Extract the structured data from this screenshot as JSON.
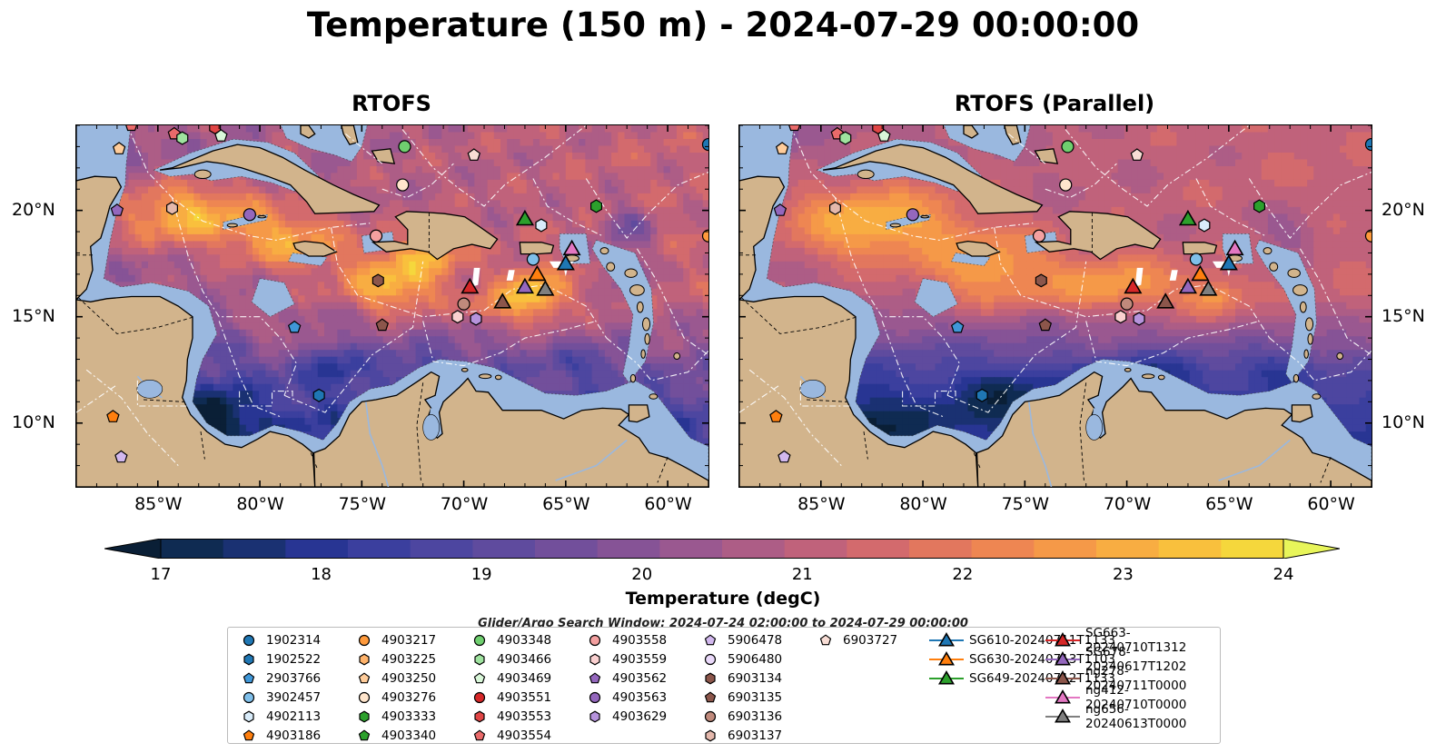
{
  "figure": {
    "title": "Temperature (150 m) - 2024-07-29 00:00:00",
    "search_window": "Glider/Argo Search Window: 2024-07-24 02:00:00 to 2024-07-29 00:00:00"
  },
  "chart_data": {
    "type": "heatmap",
    "variable": "Temperature (degC)",
    "depth": "150 m",
    "panels": [
      {
        "title": "RTOFS"
      },
      {
        "title": "RTOFS (Parallel)"
      }
    ],
    "xlim": [
      -89,
      -58
    ],
    "ylim": [
      7,
      24
    ],
    "xticks": [
      -85,
      -80,
      -75,
      -70,
      -65,
      -60
    ],
    "xticklabels": [
      "85°W",
      "80°W",
      "75°W",
      "70°W",
      "65°W",
      "60°W"
    ],
    "yticks": [
      10,
      15,
      20
    ],
    "yticklabels": [
      "10°N",
      "15°N",
      "20°N"
    ],
    "colorbar": {
      "label": "Temperature (degC)",
      "min": 16.5,
      "max": 24.5,
      "step": 0.5,
      "ticks": [
        17,
        18,
        19,
        20,
        21,
        22,
        23,
        24
      ],
      "colors": [
        "#0a1f36",
        "#0f2b52",
        "#1a3172",
        "#283593",
        "#3b3f9e",
        "#4d46a0",
        "#5f4b9e",
        "#724f9b",
        "#865396",
        "#9a5890",
        "#ad5d86",
        "#c0627b",
        "#d36a6d",
        "#e2775e",
        "#ee8652",
        "#f59948",
        "#f8ad42",
        "#f9c03d",
        "#f5d73c",
        "#e8f55a"
      ],
      "extend": "both"
    },
    "legend": [
      {
        "label": "1902314",
        "marker": "circle",
        "color": "#1f77b4"
      },
      {
        "label": "1902522",
        "marker": "hexagon",
        "color": "#1f77b4"
      },
      {
        "label": "2903766",
        "marker": "pentagon",
        "color": "#3f97d8"
      },
      {
        "label": "3902457",
        "marker": "circle",
        "color": "#7fbfea"
      },
      {
        "label": "4902113",
        "marker": "hexagon",
        "color": "#d9ecfa"
      },
      {
        "label": "4903186",
        "marker": "pentagon",
        "color": "#ff7f0e"
      },
      {
        "label": "4903217",
        "marker": "circle",
        "color": "#ff9a3c"
      },
      {
        "label": "4903225",
        "marker": "hexagon",
        "color": "#ffb36b"
      },
      {
        "label": "4903250",
        "marker": "pentagon",
        "color": "#ffcc9a"
      },
      {
        "label": "4903276",
        "marker": "circle",
        "color": "#ffe5cc"
      },
      {
        "label": "4903333",
        "marker": "hexagon",
        "color": "#2ca02c"
      },
      {
        "label": "4903340",
        "marker": "pentagon",
        "color": "#2ca02c"
      },
      {
        "label": "4903348",
        "marker": "circle",
        "color": "#6fcf6f"
      },
      {
        "label": "4903466",
        "marker": "hexagon",
        "color": "#9fe39f"
      },
      {
        "label": "4903469",
        "marker": "pentagon",
        "color": "#d9f7d9"
      },
      {
        "label": "4903551",
        "marker": "circle",
        "color": "#d62728"
      },
      {
        "label": "4903553",
        "marker": "hexagon",
        "color": "#e04545"
      },
      {
        "label": "4903554",
        "marker": "pentagon",
        "color": "#ea6a6a"
      },
      {
        "label": "4903558",
        "marker": "circle",
        "color": "#f4a0a0"
      },
      {
        "label": "4903559",
        "marker": "hexagon",
        "color": "#fad0d0"
      },
      {
        "label": "4903562",
        "marker": "pentagon",
        "color": "#9467bd"
      },
      {
        "label": "4903563",
        "marker": "circle",
        "color": "#9467bd"
      },
      {
        "label": "4903629",
        "marker": "hexagon",
        "color": "#b693dc"
      },
      {
        "label": "5906478",
        "marker": "pentagon",
        "color": "#d2b8ee"
      },
      {
        "label": "5906480",
        "marker": "circle",
        "color": "#ead9fa"
      },
      {
        "label": "6903134",
        "marker": "hexagon",
        "color": "#8c564b"
      },
      {
        "label": "6903135",
        "marker": "pentagon",
        "color": "#8c564b"
      },
      {
        "label": "6903136",
        "marker": "circle",
        "color": "#c08a7c"
      },
      {
        "label": "6903137",
        "marker": "hexagon",
        "color": "#e4b8ac"
      },
      {
        "label": "6903727",
        "marker": "pentagon",
        "color": "#f8ddd5"
      },
      {
        "label": "SG610-20240711T1133",
        "marker": "triangle",
        "color": "#1f77b4",
        "line": true
      },
      {
        "label": "SG630-20240713T1103",
        "marker": "triangle",
        "color": "#ff7f0e",
        "line": true
      },
      {
        "label": "SG649-20240712T1133",
        "marker": "triangle",
        "color": "#2ca02c",
        "line": true
      },
      {
        "label": "SG663-20240710T1312",
        "marker": "triangle",
        "color": "#d62728",
        "line": true
      },
      {
        "label": "SG678-20240617T1202",
        "marker": "triangle",
        "color": "#9467bd",
        "line": true
      },
      {
        "label": "ng278-20240711T0000",
        "marker": "triangle",
        "color": "#8c564b",
        "line": true
      },
      {
        "label": "ng412-20240710T0000",
        "marker": "triangle",
        "color": "#e377c2",
        "line": true
      },
      {
        "label": "ng656-20240613T0000",
        "marker": "triangle",
        "color": "#7f7f7f",
        "line": true
      }
    ],
    "points": [
      {
        "id": "4903554",
        "lon": -86.3,
        "lat": 24.0
      },
      {
        "id": "4903250",
        "lon": -86.9,
        "lat": 22.9
      },
      {
        "id": "4903554",
        "lon": -84.2,
        "lat": 23.6
      },
      {
        "id": "4903466",
        "lon": -83.8,
        "lat": 23.4
      },
      {
        "id": "4903553",
        "lon": -82.2,
        "lat": 23.9
      },
      {
        "id": "4903469",
        "lon": -81.9,
        "lat": 23.5
      },
      {
        "id": "4903348",
        "lon": -72.9,
        "lat": 23.0
      },
      {
        "id": "6903727",
        "lon": -69.5,
        "lat": 22.6
      },
      {
        "id": "4903276",
        "lon": -73.0,
        "lat": 21.2
      },
      {
        "id": "4903562",
        "lon": -87.0,
        "lat": 20.0
      },
      {
        "id": "6903137",
        "lon": -84.3,
        "lat": 20.1
      },
      {
        "id": "4903563",
        "lon": -80.5,
        "lat": 19.8
      },
      {
        "id": "4903558",
        "lon": -74.3,
        "lat": 18.8
      },
      {
        "id": "4903333",
        "lon": -63.5,
        "lat": 20.2
      },
      {
        "id": "4902113",
        "lon": -66.2,
        "lat": 19.3
      },
      {
        "id": "3902457",
        "lon": -66.6,
        "lat": 17.7
      },
      {
        "id": "6903134",
        "lon": -74.2,
        "lat": 16.7
      },
      {
        "id": "6903136",
        "lon": -70.0,
        "lat": 15.6
      },
      {
        "id": "4903559",
        "lon": -70.3,
        "lat": 15.0
      },
      {
        "id": "4903629",
        "lon": -69.4,
        "lat": 14.9
      },
      {
        "id": "6903135",
        "lon": -74.0,
        "lat": 14.6
      },
      {
        "id": "2903766",
        "lon": -78.3,
        "lat": 14.5
      },
      {
        "id": "1902522",
        "lon": -77.1,
        "lat": 11.3
      },
      {
        "id": "4903186",
        "lon": -87.2,
        "lat": 10.3
      },
      {
        "id": "5906478",
        "lon": -86.8,
        "lat": 8.4
      },
      {
        "id": "1902314",
        "lon": -58.0,
        "lat": 23.1
      },
      {
        "id": "4903217",
        "lon": -58.0,
        "lat": 18.8
      },
      {
        "id": "SG649-20240712T1133",
        "lon": -67.0,
        "lat": 19.6
      },
      {
        "id": "SG610-20240711T1133",
        "lon": -65.0,
        "lat": 17.5
      },
      {
        "id": "ng412-20240710T0000",
        "lon": -64.7,
        "lat": 18.2
      },
      {
        "id": "SG630-20240713T1103",
        "lon": -66.4,
        "lat": 17.0
      },
      {
        "id": "SG663-20240710T1312",
        "lon": -69.7,
        "lat": 16.4
      },
      {
        "id": "SG678-20240617T1202",
        "lon": -67.0,
        "lat": 16.4
      },
      {
        "id": "ng656-20240613T0000",
        "lon": -66.0,
        "lat": 16.3
      },
      {
        "id": "ng278-20240711T0000",
        "lon": -68.1,
        "lat": 15.7
      }
    ]
  }
}
